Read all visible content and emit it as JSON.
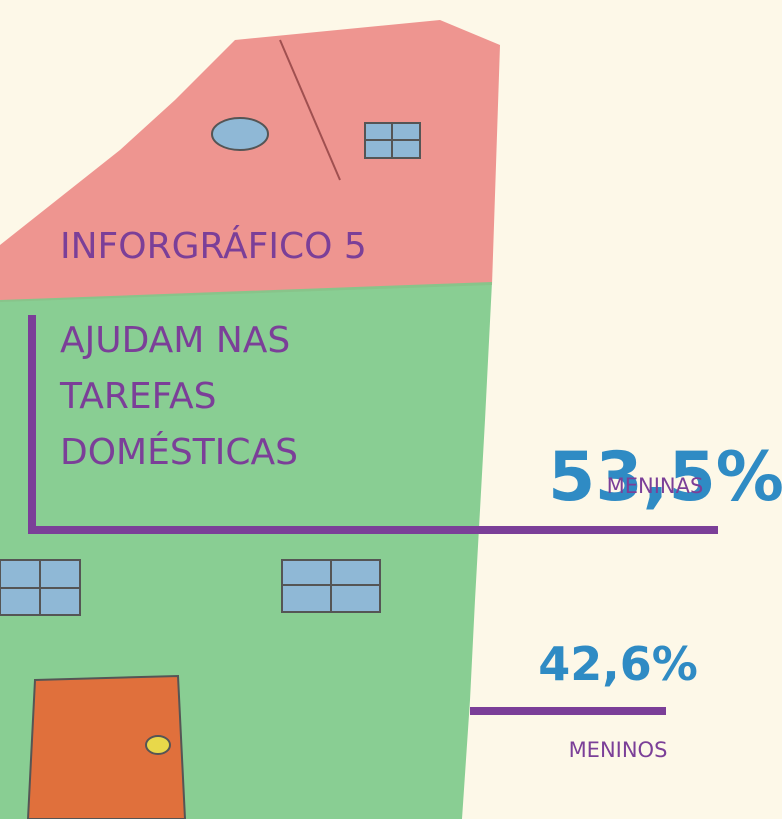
{
  "header": {
    "label": "INFORGRÁFICO 5",
    "title_lines": [
      "AJUDAM NAS",
      "TAREFAS",
      "DOMÉSTICAS"
    ]
  },
  "stats": [
    {
      "value": "53,5%",
      "label": "MENINAS"
    },
    {
      "value": "42,6%",
      "label": "MENINOS"
    }
  ]
}
